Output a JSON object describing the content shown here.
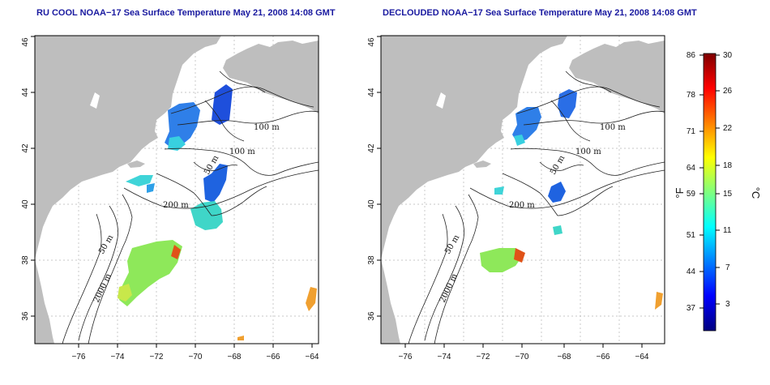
{
  "panels": [
    {
      "title": "RU COOL NOAA−17 Sea Surface Temperature May 21, 2008 14:08 GMT",
      "contour_labels": [
        "100 m",
        "100 m",
        "50 m",
        "200 m",
        "50 m",
        "2000 m"
      ]
    },
    {
      "title": "DECLOUDED NOAA−17 Sea Surface Temperature May 21, 2008 14:08 GMT",
      "contour_labels": [
        "100 m",
        "100 m",
        "50 m",
        "200 m",
        "50 m",
        "2000 m"
      ]
    }
  ],
  "x_ticks": [
    "−76",
    "−74",
    "−72",
    "−70",
    "−68",
    "−66",
    "−64"
  ],
  "y_ticks": [
    "36",
    "38",
    "40",
    "42",
    "44",
    "46"
  ],
  "colorbar": {
    "fahrenheit_ticks": [
      "86",
      "78",
      "71",
      "64",
      "59",
      "51",
      "44",
      "37"
    ],
    "celsius_ticks": [
      "30",
      "26",
      "22",
      "18",
      "15",
      "11",
      "7",
      "3"
    ],
    "unit_left": "°F",
    "unit_right": "°C",
    "colors": [
      "#00007f",
      "#0000ff",
      "#007fff",
      "#00ffff",
      "#7fff7f",
      "#ffff00",
      "#ff7f00",
      "#ff0000",
      "#7f0000"
    ]
  },
  "map_colors": {
    "land": "#bebebe",
    "ocean": "#ffffff",
    "grid": "#aaaaaa"
  }
}
